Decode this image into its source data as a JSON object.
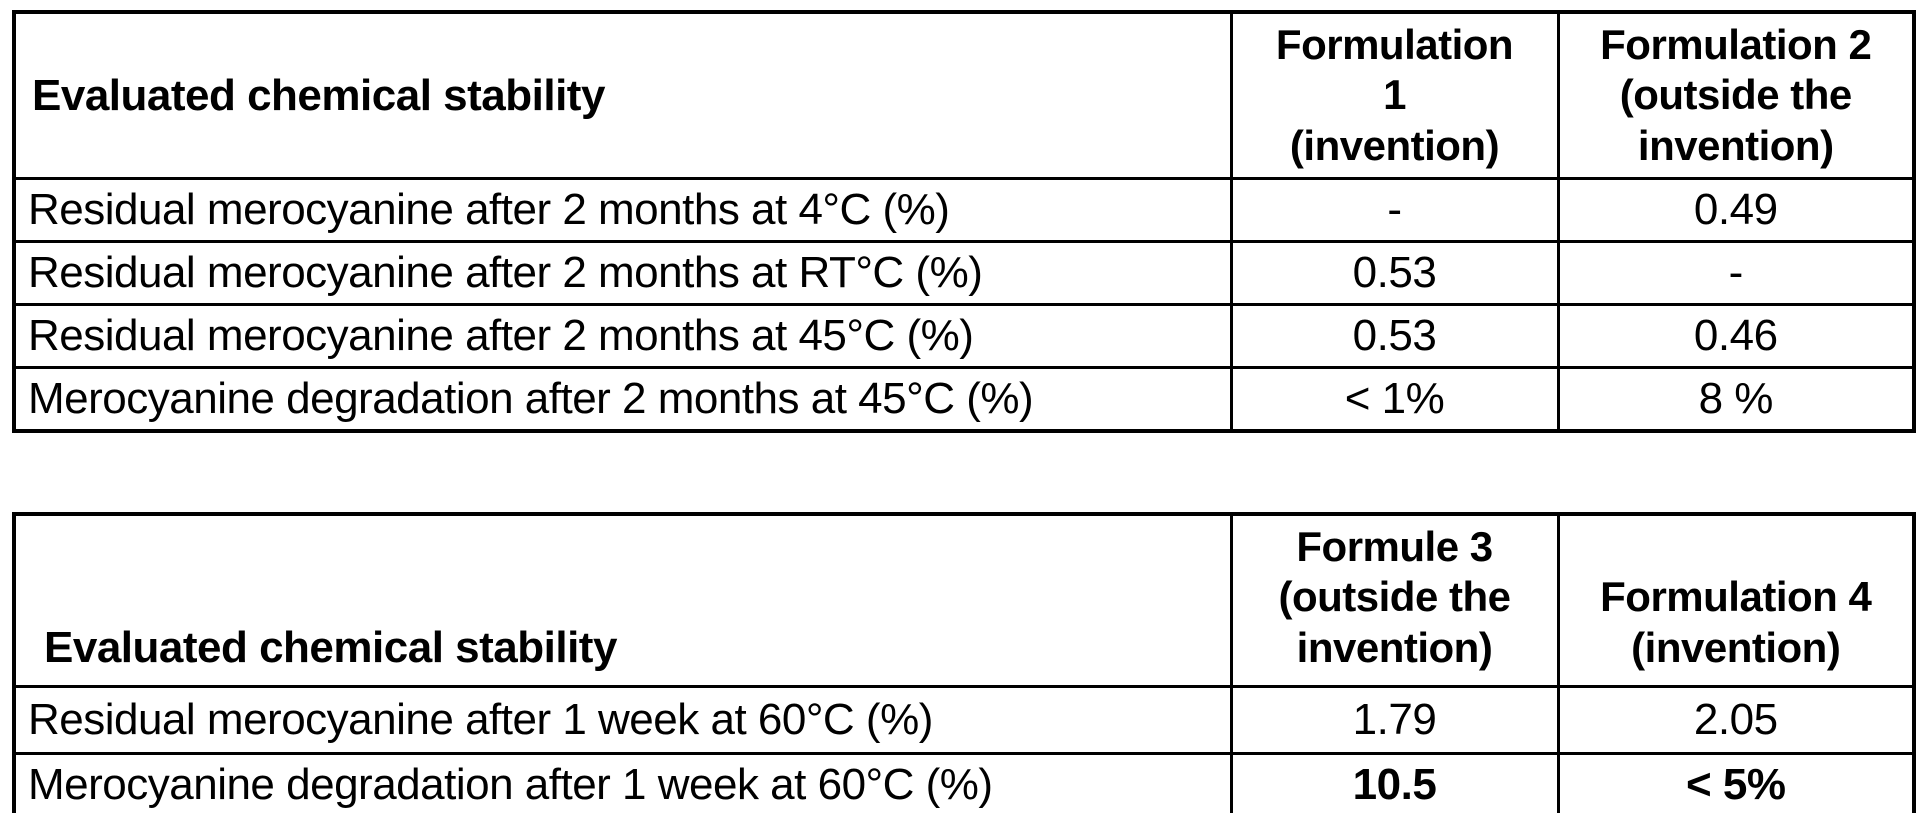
{
  "tables": [
    {
      "title_header": "Evaluated chemical stability",
      "col_headers": [
        "Formulation\n1\n(invention)",
        "Formulation 2\n(outside the\ninvention)"
      ],
      "rows": [
        {
          "label": "Residual merocyanine after 2 months at 4°C (%)",
          "values": [
            "-",
            "0.49"
          ]
        },
        {
          "label": "Residual merocyanine after 2 months at RT°C (%)",
          "values": [
            "0.53",
            "-"
          ]
        },
        {
          "label": "Residual merocyanine after 2 months at 45°C (%)",
          "values": [
            "0.53",
            "0.46"
          ]
        },
        {
          "label": "Merocyanine degradation after 2 months at 45°C (%)",
          "values": [
            "< 1%",
            "8 %"
          ]
        }
      ]
    },
    {
      "title_header": "Evaluated chemical stability",
      "col_headers": [
        "Formule 3\n(outside the\ninvention)",
        "Formulation 4\n(invention)"
      ],
      "rows": [
        {
          "label": "Residual merocyanine after 1 week at 60°C (%)",
          "values": [
            "1.79",
            "2.05"
          ]
        },
        {
          "label": "Merocyanine degradation after 1 week at 60°C (%)",
          "values": [
            "10.5",
            "< 5%"
          ]
        }
      ]
    }
  ]
}
